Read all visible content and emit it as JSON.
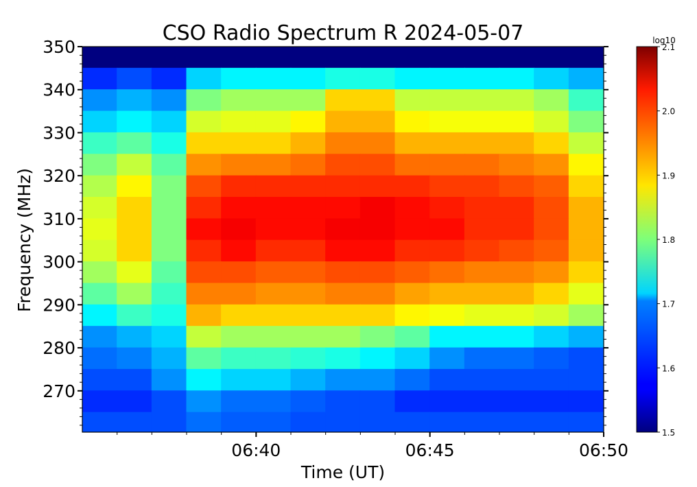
{
  "chart_data": {
    "type": "heatmap",
    "title": "CSO Radio Spectrum R 2024-05-07",
    "xlabel": "Time (UT)",
    "ylabel": "Frequency (MHz)",
    "colorbar_label": "log10",
    "colormap": "jet",
    "clim": [
      1.5,
      2.1
    ],
    "colorbar_ticks": [
      "1.5",
      "1.6",
      "1.7",
      "1.8",
      "1.9",
      "2.0",
      "2.1"
    ],
    "xlim_minutes": [
      35,
      50
    ],
    "x_ticks": [
      {
        "minute": 40,
        "label": "06:40"
      },
      {
        "minute": 45,
        "label": "06:45"
      },
      {
        "minute": 50,
        "label": "06:50"
      }
    ],
    "ylim": [
      260.4,
      350
    ],
    "y_ticks": [
      "270",
      "280",
      "290",
      "300",
      "310",
      "320",
      "330",
      "340",
      "350"
    ],
    "time_bins_minute_start": [
      35,
      36,
      37,
      38,
      39,
      40,
      41,
      42,
      43,
      44,
      45,
      46,
      47,
      48,
      49
    ],
    "freq_bins_lower_mhz": [
      345,
      340,
      335,
      330,
      325,
      320,
      315,
      310,
      305,
      300,
      295,
      290,
      285,
      280,
      275,
      270,
      265,
      260
    ],
    "values": [
      [
        1.5,
        1.5,
        1.5,
        1.5,
        1.5,
        1.5,
        1.5,
        1.5,
        1.5,
        1.5,
        1.5,
        1.5,
        1.5,
        1.5,
        1.5
      ],
      [
        1.6,
        1.62,
        1.6,
        1.7,
        1.72,
        1.72,
        1.72,
        1.74,
        1.74,
        1.72,
        1.72,
        1.72,
        1.72,
        1.7,
        1.68
      ],
      [
        1.66,
        1.68,
        1.66,
        1.8,
        1.82,
        1.82,
        1.82,
        1.9,
        1.9,
        1.84,
        1.84,
        1.84,
        1.84,
        1.82,
        1.76
      ],
      [
        1.7,
        1.72,
        1.7,
        1.85,
        1.86,
        1.86,
        1.88,
        1.92,
        1.92,
        1.88,
        1.87,
        1.87,
        1.87,
        1.85,
        1.8
      ],
      [
        1.76,
        1.78,
        1.74,
        1.9,
        1.9,
        1.9,
        1.92,
        1.95,
        1.95,
        1.92,
        1.92,
        1.92,
        1.92,
        1.9,
        1.84
      ],
      [
        1.8,
        1.84,
        1.78,
        1.94,
        1.95,
        1.95,
        1.96,
        1.98,
        1.98,
        1.96,
        1.96,
        1.96,
        1.95,
        1.94,
        1.88
      ],
      [
        1.83,
        1.88,
        1.8,
        1.98,
        2.0,
        2.0,
        2.0,
        2.0,
        2.0,
        2.0,
        1.99,
        1.99,
        1.98,
        1.97,
        1.9
      ],
      [
        1.85,
        1.9,
        1.8,
        2.0,
        2.02,
        2.02,
        2.02,
        2.02,
        2.03,
        2.02,
        2.01,
        2.0,
        2.0,
        1.98,
        1.92
      ],
      [
        1.86,
        1.9,
        1.8,
        2.02,
        2.03,
        2.02,
        2.02,
        2.03,
        2.03,
        2.02,
        2.02,
        2.0,
        2.0,
        1.98,
        1.92
      ],
      [
        1.85,
        1.9,
        1.8,
        2.0,
        2.02,
        2.0,
        2.0,
        2.02,
        2.02,
        2.0,
        2.0,
        1.99,
        1.98,
        1.97,
        1.92
      ],
      [
        1.82,
        1.86,
        1.78,
        1.98,
        1.98,
        1.97,
        1.97,
        1.98,
        1.98,
        1.97,
        1.96,
        1.95,
        1.95,
        1.94,
        1.9
      ],
      [
        1.78,
        1.82,
        1.76,
        1.95,
        1.95,
        1.94,
        1.94,
        1.95,
        1.95,
        1.93,
        1.92,
        1.92,
        1.92,
        1.9,
        1.86
      ],
      [
        1.72,
        1.76,
        1.74,
        1.92,
        1.9,
        1.9,
        1.9,
        1.9,
        1.9,
        1.88,
        1.87,
        1.86,
        1.86,
        1.85,
        1.82
      ],
      [
        1.66,
        1.68,
        1.7,
        1.84,
        1.82,
        1.82,
        1.82,
        1.82,
        1.8,
        1.78,
        1.72,
        1.72,
        1.72,
        1.7,
        1.68
      ],
      [
        1.64,
        1.65,
        1.68,
        1.78,
        1.76,
        1.76,
        1.75,
        1.74,
        1.72,
        1.7,
        1.66,
        1.64,
        1.64,
        1.63,
        1.62
      ],
      [
        1.62,
        1.62,
        1.66,
        1.72,
        1.7,
        1.7,
        1.68,
        1.66,
        1.66,
        1.64,
        1.62,
        1.62,
        1.62,
        1.62,
        1.62
      ],
      [
        1.6,
        1.6,
        1.62,
        1.66,
        1.64,
        1.64,
        1.63,
        1.62,
        1.62,
        1.6,
        1.6,
        1.6,
        1.6,
        1.6,
        1.6
      ],
      [
        1.62,
        1.62,
        1.62,
        1.64,
        1.63,
        1.63,
        1.62,
        1.62,
        1.62,
        1.62,
        1.62,
        1.62,
        1.62,
        1.62,
        1.62
      ]
    ]
  }
}
